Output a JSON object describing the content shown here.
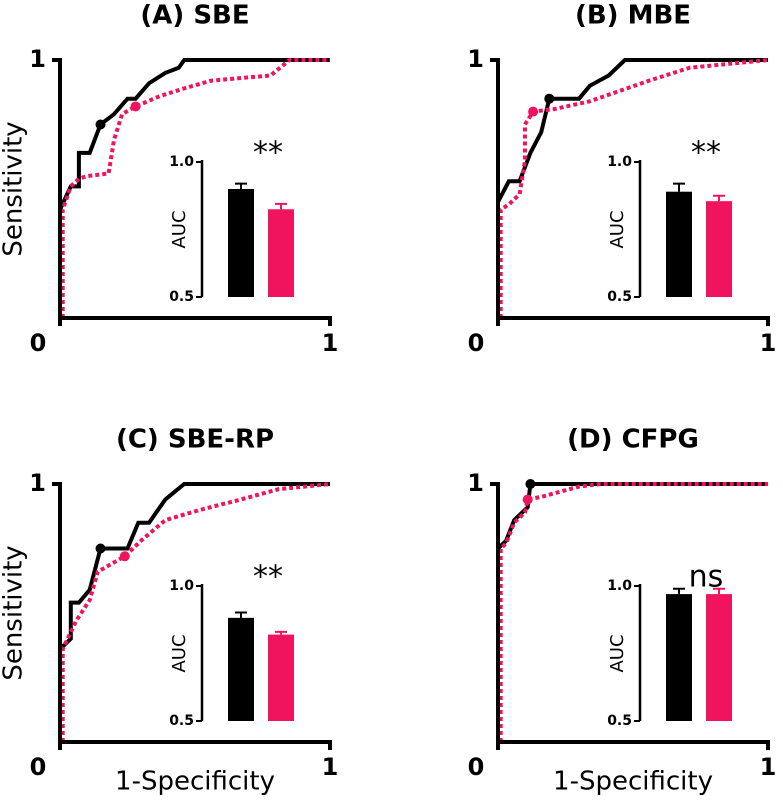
{
  "chart_data": [
    {
      "type": "line",
      "title": "(A) SBE",
      "ylabel": "Sensitivity",
      "xlim": [
        0,
        1
      ],
      "ylim": [
        0,
        1
      ],
      "xticks": [
        0,
        1
      ],
      "yticks": [
        1
      ],
      "series": [
        {
          "color": "#000000",
          "style": "solid",
          "x": [
            0,
            0.04,
            0.07,
            0.07,
            0.11,
            0.15,
            0.2,
            0.25,
            0.28,
            0.33,
            0.39,
            0.44,
            0.46,
            1
          ],
          "y": [
            0.42,
            0.51,
            0.51,
            0.64,
            0.64,
            0.75,
            0.79,
            0.85,
            0.85,
            0.91,
            0.95,
            0.97,
            1,
            1
          ],
          "cutoff": {
            "x": 0.15,
            "y": 0.75
          }
        },
        {
          "color": "#f0145e",
          "style": "dotted",
          "x": [
            0.01,
            0.01,
            0.04,
            0.07,
            0.1,
            0.18,
            0.2,
            0.23,
            0.28,
            0.37,
            0.46,
            0.56,
            0.78,
            0.85,
            1
          ],
          "y": [
            0,
            0.42,
            0.51,
            0.54,
            0.55,
            0.56,
            0.69,
            0.79,
            0.82,
            0.86,
            0.89,
            0.92,
            0.94,
            1,
            1
          ],
          "cutoff": {
            "x": 0.28,
            "y": 0.82
          }
        }
      ],
      "inset": {
        "type": "bar",
        "ylabel": "AUC",
        "ylim": [
          0.5,
          1.0
        ],
        "yticks": [
          0.5,
          {
            "value": 1.0,
            "label": "1.0"
          }
        ],
        "values": [
          0.9,
          0.825
        ],
        "errors": [
          0.02,
          0.02
        ],
        "colors": [
          "#000000",
          "#f0145e"
        ],
        "annotation": "**"
      }
    },
    {
      "type": "line",
      "title": "(B) MBE",
      "xlim": [
        0,
        1
      ],
      "ylim": [
        0,
        1
      ],
      "xticks": [
        0,
        1
      ],
      "yticks": [
        1
      ],
      "series": [
        {
          "color": "#000000",
          "style": "solid",
          "x": [
            0,
            0.04,
            0.08,
            0.12,
            0.16,
            0.19,
            0.3,
            0.34,
            0.41,
            0.47,
            1
          ],
          "y": [
            0.45,
            0.53,
            0.53,
            0.64,
            0.72,
            0.85,
            0.85,
            0.9,
            0.94,
            1,
            1
          ],
          "cutoff": {
            "x": 0.19,
            "y": 0.85
          }
        },
        {
          "color": "#f0145e",
          "style": "dotted",
          "x": [
            0.01,
            0.01,
            0.04,
            0.08,
            0.1,
            0.1,
            0.13,
            0.21,
            0.34,
            0.45,
            0.56,
            0.71,
            1
          ],
          "y": [
            0,
            0.42,
            0.44,
            0.48,
            0.61,
            0.75,
            0.8,
            0.81,
            0.84,
            0.88,
            0.92,
            0.97,
            1
          ],
          "cutoff": {
            "x": 0.13,
            "y": 0.8
          }
        }
      ],
      "inset": {
        "type": "bar",
        "ylabel": "AUC",
        "ylim": [
          0.5,
          1.0
        ],
        "yticks": [
          0.5,
          {
            "value": 1.0,
            "label": "1.0"
          }
        ],
        "values": [
          0.89,
          0.855
        ],
        "errors": [
          0.03,
          0.02
        ],
        "colors": [
          "#000000",
          "#f0145e"
        ],
        "annotation": "**"
      }
    },
    {
      "type": "line",
      "title": "(C) SBE-RP",
      "ylabel": "Sensitivity",
      "xlabel": "1-Specificity",
      "xlim": [
        0,
        1
      ],
      "ylim": [
        0,
        1
      ],
      "xticks": [
        0,
        1
      ],
      "yticks": [
        1
      ],
      "series": [
        {
          "color": "#000000",
          "style": "solid",
          "x": [
            0,
            0.04,
            0.04,
            0.07,
            0.11,
            0.15,
            0.25,
            0.29,
            0.33,
            0.39,
            0.46,
            1
          ],
          "y": [
            0.36,
            0.4,
            0.54,
            0.54,
            0.59,
            0.75,
            0.75,
            0.85,
            0.85,
            0.94,
            1,
            1
          ],
          "cutoff": {
            "x": 0.15,
            "y": 0.75
          }
        },
        {
          "color": "#f0145e",
          "style": "dotted",
          "x": [
            0.01,
            0.01,
            0.06,
            0.11,
            0.14,
            0.19,
            0.24,
            0.3,
            0.39,
            0.52,
            0.67,
            0.81,
            1
          ],
          "y": [
            0,
            0.36,
            0.47,
            0.55,
            0.66,
            0.69,
            0.72,
            0.78,
            0.86,
            0.9,
            0.94,
            0.98,
            1
          ],
          "cutoff": {
            "x": 0.24,
            "y": 0.72
          }
        }
      ],
      "inset": {
        "type": "bar",
        "ylabel": "AUC",
        "ylim": [
          0.5,
          1.0
        ],
        "yticks": [
          0.5,
          {
            "value": 1.0,
            "label": "1.0"
          }
        ],
        "values": [
          0.882,
          0.82
        ],
        "errors": [
          0.02,
          0.01
        ],
        "colors": [
          "#000000",
          "#f0145e"
        ],
        "annotation": "**"
      }
    },
    {
      "type": "line",
      "title": "(D) CFPG",
      "xlabel": "1-Specificity",
      "xlim": [
        0,
        1
      ],
      "ylim": [
        0,
        1
      ],
      "xticks": [
        0,
        1
      ],
      "yticks": [
        1
      ],
      "series": [
        {
          "color": "#000000",
          "style": "solid",
          "x": [
            0,
            0.03,
            0.06,
            0.11,
            0.12,
            1
          ],
          "y": [
            0.75,
            0.78,
            0.86,
            0.91,
            1,
            1
          ],
          "cutoff": {
            "x": 0.12,
            "y": 1
          }
        },
        {
          "color": "#f0145e",
          "style": "dotted",
          "x": [
            0.01,
            0.01,
            0.03,
            0.06,
            0.1,
            0.11,
            0.16,
            0.3,
            0.38,
            1
          ],
          "y": [
            0,
            0.75,
            0.77,
            0.85,
            0.89,
            0.94,
            0.95,
            0.99,
            1,
            1
          ],
          "cutoff": {
            "x": 0.11,
            "y": 0.94
          }
        }
      ],
      "inset": {
        "type": "bar",
        "ylabel": "AUC",
        "ylim": [
          0.5,
          1.0
        ],
        "yticks": [
          0.5,
          {
            "value": 1.0,
            "label": "1.0"
          }
        ],
        "values": [
          0.97,
          0.97
        ],
        "errors": [
          0.02,
          0.02
        ],
        "colors": [
          "#000000",
          "#f0145e"
        ],
        "annotation": "ns"
      }
    }
  ]
}
